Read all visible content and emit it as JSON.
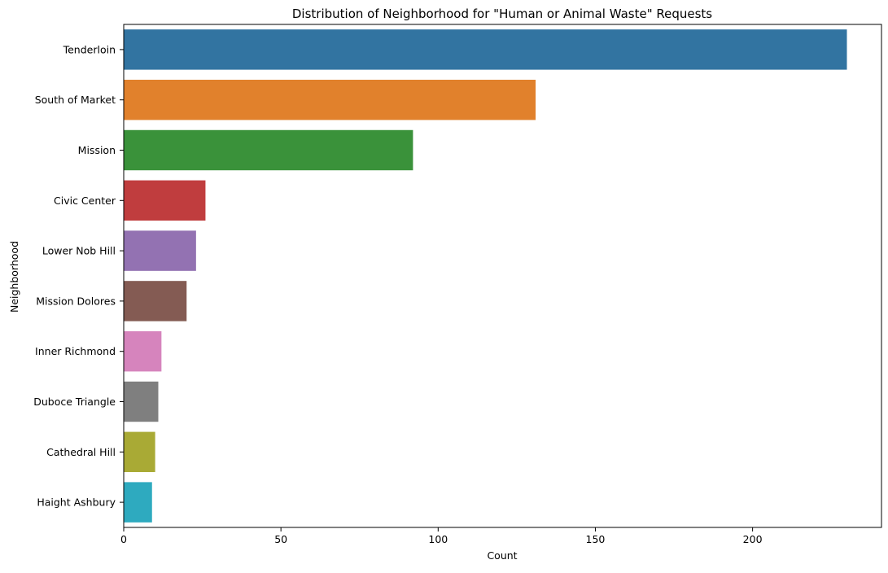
{
  "chart_data": {
    "type": "bar",
    "orientation": "horizontal",
    "title": "Distribution of Neighborhood for \"Human or Animal Waste\" Requests",
    "xlabel": "Count",
    "ylabel": "Neighborhood",
    "xlim": [
      0,
      241
    ],
    "xticks": [
      0,
      50,
      100,
      150,
      200
    ],
    "grid": false,
    "categories": [
      "Tenderloin",
      "South of Market",
      "Mission",
      "Civic Center",
      "Lower Nob Hill",
      "Mission Dolores",
      "Inner Richmond",
      "Duboce Triangle",
      "Cathedral Hill",
      "Haight Ashbury"
    ],
    "values": [
      230,
      131,
      92,
      26,
      23,
      20,
      12,
      11,
      10,
      9
    ],
    "colors": [
      "#3274a1",
      "#e1812c",
      "#3a923a",
      "#c03d3e",
      "#9372b2",
      "#845b53",
      "#d684bd",
      "#7f7f7f",
      "#a9aa35",
      "#2eaabf"
    ]
  }
}
